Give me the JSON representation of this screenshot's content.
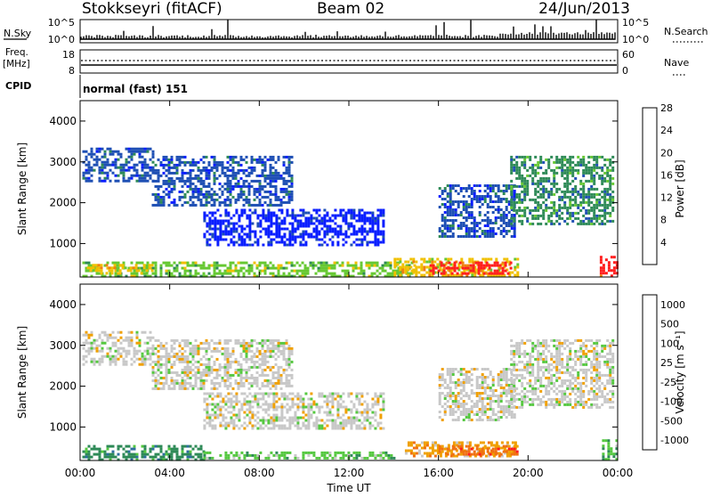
{
  "header": {
    "radar": "Stokkseyri (fitACF)",
    "beam": "Beam 02",
    "date": "24/Jun/2013"
  },
  "summary_panels": {
    "nsky": {
      "label": "N.Sky",
      "ticks": [
        "10^5",
        "10^0"
      ],
      "right_ticks": [
        "10^5",
        "10^0"
      ],
      "right_label": "N.Search"
    },
    "freq": {
      "label_top": "Freq.",
      "label_unit": "[MHz]",
      "ticks": [
        "18",
        "8"
      ],
      "right_ticks": [
        "60",
        "0"
      ],
      "right_label": "Nave"
    },
    "cpid": {
      "label": "CPID",
      "text": "normal (fast) 151"
    }
  },
  "chart_data": [
    {
      "type": "heatmap",
      "name": "power",
      "xlabel": "",
      "ylabel": "Slant Range [km]",
      "xlim": [
        0,
        24
      ],
      "ylim": [
        180,
        4500
      ],
      "x_tick_labels": [
        "00:00",
        "04:00",
        "08:00",
        "12:00",
        "16:00",
        "20:00",
        "00:00"
      ],
      "y_ticks": [
        1000,
        2000,
        3000,
        4000
      ],
      "colorbar": {
        "label": "Power [dB]",
        "tick_labels": [
          "4",
          "8",
          "12",
          "16",
          "20",
          "24",
          "28"
        ],
        "colors": [
          "#0a1eff",
          "#1e4fb4",
          "#2e8a57",
          "#66c832",
          "#f0c000",
          "#f08010",
          "#ff1e1e"
        ]
      },
      "regions": [
        {
          "t": [
            0.1,
            3.2
          ],
          "r": [
            2550,
            3350
          ],
          "level": 1
        },
        {
          "t": [
            3.2,
            9.5
          ],
          "r": [
            1950,
            3150
          ],
          "level": 1
        },
        {
          "t": [
            5.5,
            13.5
          ],
          "r": [
            950,
            1850
          ],
          "level": 0
        },
        {
          "t": [
            0.1,
            15.0
          ],
          "r": [
            210,
            560
          ],
          "level": 3
        },
        {
          "t": [
            0.3,
            3.2
          ],
          "r": [
            250,
            500
          ],
          "level": 4
        },
        {
          "t": [
            14.0,
            19.5
          ],
          "r": [
            210,
            650
          ],
          "level": 4
        },
        {
          "t": [
            15.6,
            19.2
          ],
          "r": [
            260,
            560
          ],
          "level": 6
        },
        {
          "t": [
            16.0,
            19.4
          ],
          "r": [
            1150,
            2450
          ],
          "level": 1
        },
        {
          "t": [
            19.2,
            23.8
          ],
          "r": [
            1450,
            3150
          ],
          "level": 2
        },
        {
          "t": [
            23.2,
            24.0
          ],
          "r": [
            210,
            700
          ],
          "level": 6
        }
      ]
    },
    {
      "type": "heatmap",
      "name": "velocity",
      "xlabel": "Time UT",
      "ylabel": "Slant Range [km]",
      "xlim": [
        0,
        24
      ],
      "ylim": [
        180,
        4500
      ],
      "x_tick_labels": [
        "00:00",
        "04:00",
        "08:00",
        "12:00",
        "16:00",
        "20:00",
        "00:00"
      ],
      "y_ticks": [
        1000,
        2000,
        3000,
        4000
      ],
      "colorbar": {
        "label": "Velocity [m s⁻¹]",
        "tick_labels": [
          "1000",
          "500",
          "100",
          "25",
          "-25",
          "-100",
          "-500",
          "-1000"
        ],
        "colors": [
          "#1e3cb4",
          "#2e6e9e",
          "#2e8a57",
          "#55c840",
          "#c8c8c8",
          "#f0a000",
          "#f07010",
          "#ff1e1e"
        ]
      },
      "regions": [
        {
          "t": [
            0.1,
            3.2
          ],
          "r": [
            2550,
            3350
          ],
          "level": 4
        },
        {
          "t": [
            3.2,
            9.5
          ],
          "r": [
            1950,
            3150
          ],
          "level": 4
        },
        {
          "t": [
            5.5,
            13.5
          ],
          "r": [
            950,
            1850
          ],
          "level": 4
        },
        {
          "t": [
            0.1,
            5.5
          ],
          "r": [
            210,
            560
          ],
          "level": 2
        },
        {
          "t": [
            5.5,
            14.0
          ],
          "r": [
            210,
            400
          ],
          "level": 3
        },
        {
          "t": [
            14.5,
            19.5
          ],
          "r": [
            260,
            650
          ],
          "level": 5
        },
        {
          "t": [
            16.0,
            19.5
          ],
          "r": [
            300,
            560
          ],
          "level": 6
        },
        {
          "t": [
            16.0,
            19.4
          ],
          "r": [
            1150,
            2450
          ],
          "level": 4
        },
        {
          "t": [
            19.2,
            23.8
          ],
          "r": [
            1450,
            3150
          ],
          "level": 4
        },
        {
          "t": [
            23.3,
            24.0
          ],
          "r": [
            210,
            700
          ],
          "level": 3
        }
      ]
    }
  ]
}
